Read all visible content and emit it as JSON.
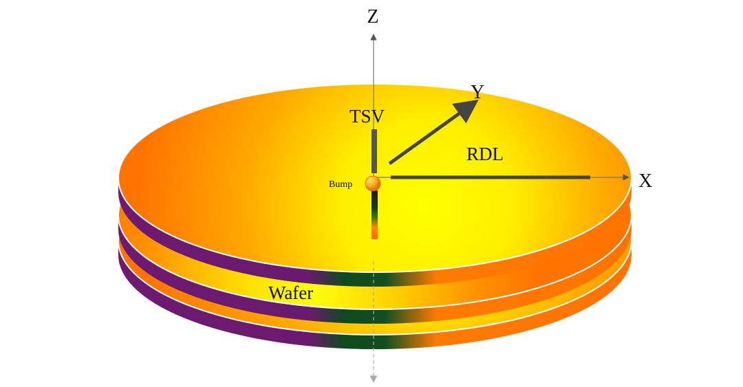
{
  "axes": {
    "z": "Z",
    "x": "X",
    "y": "Y"
  },
  "labels": {
    "tsv": "TSV",
    "rdl": "RDL",
    "bump": "Bump",
    "wafer": "Wafer"
  },
  "colors": {
    "orange": "#ff7a00",
    "yellow": "#ffff00",
    "purple": "#6e1a70",
    "green": "#0f4a1e",
    "axis_line": "#444444",
    "axis_arrow": "#555555"
  }
}
